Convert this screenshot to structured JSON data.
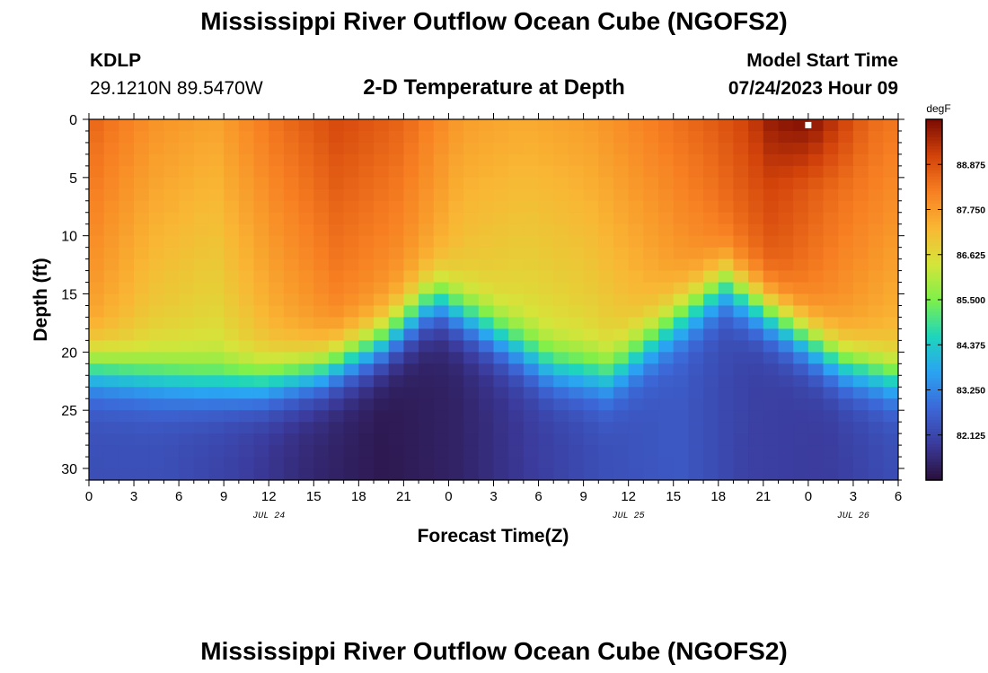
{
  "page": {
    "title": "Mississippi River Outflow Ocean Cube (NGOFS2)",
    "footer_title": "Mississippi River Outflow Ocean Cube (NGOFS2)",
    "station_id": "KDLP",
    "station_coords": "29.1210N  89.5470W",
    "subtitle": "2-D Temperature at Depth",
    "model_start_label": "Model Start Time",
    "model_start_value": "07/24/2023 Hour 09"
  },
  "chart_data": {
    "type": "heatmap",
    "title": "2-D Temperature at Depth",
    "xlabel": "Forecast Time(Z)",
    "ylabel": "Depth (ft)",
    "x_tick_labels": [
      "0",
      "3",
      "6",
      "9",
      "12",
      "15",
      "18",
      "21",
      "0",
      "3",
      "6",
      "9",
      "12",
      "15",
      "18",
      "21",
      "0",
      "3",
      "6"
    ],
    "x_range_hours": [
      0,
      54
    ],
    "date_labels": [
      {
        "text": "JUL 24",
        "hour": 12
      },
      {
        "text": "JUL 25",
        "hour": 36
      },
      {
        "text": "JUL 26",
        "hour": 51
      }
    ],
    "y_range_ft": [
      0,
      31
    ],
    "y_ticks": [
      0,
      5,
      10,
      15,
      20,
      25,
      30
    ],
    "colorbar": {
      "units": "degF",
      "range": [
        81.0,
        90.0
      ],
      "tick_labels": [
        "88.875",
        "87.750",
        "86.625",
        "85.500",
        "84.375",
        "83.250",
        "82.125"
      ],
      "tick_values": [
        88.875,
        87.75,
        86.625,
        85.5,
        84.375,
        83.25,
        82.125
      ],
      "colors": [
        "#2a0f3b",
        "#3b3b9c",
        "#3c68d8",
        "#2aa4f2",
        "#1fd6bb",
        "#7ef04a",
        "#d6e43a",
        "#f9b634",
        "#f77f22",
        "#d2420a",
        "#7a0b03"
      ]
    },
    "surface_temp_degF": [
      88.6,
      87.9,
      87.6,
      88.4,
      89.0,
      88.6,
      87.7,
      87.5,
      87.7,
      88.2,
      88.7,
      89.4,
      88.8,
      88.3
    ],
    "thermocline_depth_ft": [
      21.5,
      22.2,
      22.8,
      22.8,
      21.8,
      19.5,
      15.5,
      18.5,
      21.5,
      22.2,
      18.0,
      14.2,
      17.5,
      21.0,
      22.5
    ],
    "deep_temp_degF": [
      82.3,
      82.3,
      82.0,
      81.5,
      81.2,
      81.4,
      81.9,
      82.3,
      82.5,
      82.0,
      81.9,
      82.3
    ],
    "marker": {
      "hour": 48,
      "depth_ft": 0.3
    }
  }
}
